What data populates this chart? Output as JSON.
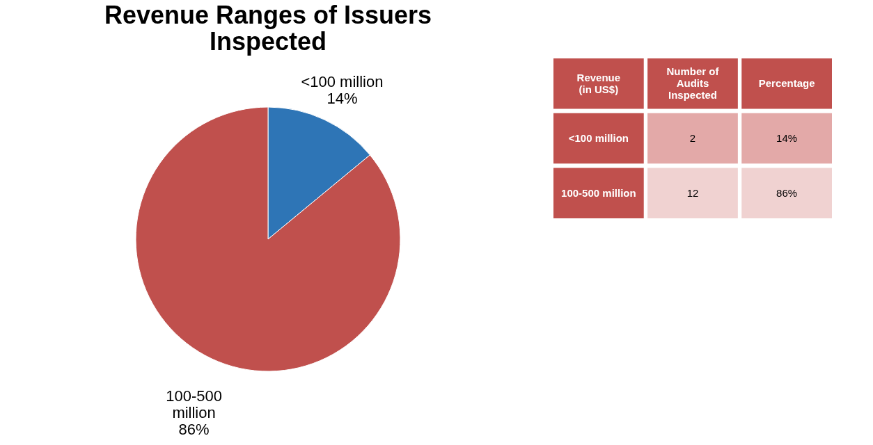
{
  "chart_data": [
    {
      "type": "pie",
      "title": "Revenue Ranges of Issuers Inspected",
      "categories": [
        "<100 million",
        "100-500 million"
      ],
      "values": [
        14,
        86
      ],
      "colors": [
        "#2e75b6",
        "#c0504d"
      ],
      "value_labels": [
        "14%",
        "86%"
      ]
    },
    {
      "type": "other",
      "xlabel": "Revenue (in US$)",
      "categories": [
        "<100 million",
        "100-500 million"
      ],
      "colors": [
        "#c0504d",
        "#c0504d"
      ],
      "data_labels": true,
      "series": [
        {
          "name": "Number of Audits Inspected",
          "colors": [
            "#e3a9a8",
            "#f0d2d1"
          ],
          "values": [
            2,
            12
          ]
        },
        {
          "name": "Percentage",
          "colors": [
            "#e3a9a8",
            "#f0d2d1"
          ],
          "values": [
            14,
            86
          ],
          "value_labels": [
            "14%",
            "86%"
          ]
        }
      ]
    }
  ]
}
